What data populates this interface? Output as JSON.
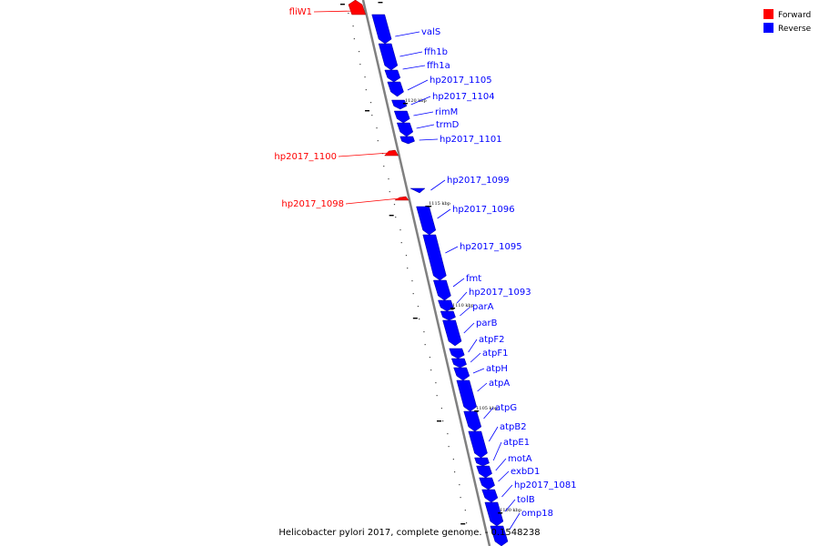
{
  "caption": "Helicobacter pylori 2017, complete genome. - 0.1548238",
  "legend": [
    {
      "label": "Forward",
      "color": "#ff0000"
    },
    {
      "label": "Reverse",
      "color": "#0000ff"
    }
  ],
  "colors": {
    "forward": "#ff0000",
    "reverse": "#0000ff",
    "backbone": "#808080"
  },
  "ticks": [
    "1120 kbp",
    "1115 kbp",
    "1110 kbp",
    "1105 kbp",
    "1100 kbp"
  ],
  "genes": [
    {
      "name": "fliW1",
      "strand": "forward"
    },
    {
      "name": "valS",
      "strand": "reverse"
    },
    {
      "name": "ffh1b",
      "strand": "reverse"
    },
    {
      "name": "ffh1a",
      "strand": "reverse"
    },
    {
      "name": "hp2017_1105",
      "strand": "reverse"
    },
    {
      "name": "hp2017_1104",
      "strand": "reverse"
    },
    {
      "name": "rimM",
      "strand": "reverse"
    },
    {
      "name": "trmD",
      "strand": "reverse"
    },
    {
      "name": "hp2017_1101",
      "strand": "reverse"
    },
    {
      "name": "hp2017_1100",
      "strand": "forward"
    },
    {
      "name": "hp2017_1099",
      "strand": "reverse"
    },
    {
      "name": "hp2017_1098",
      "strand": "forward"
    },
    {
      "name": "hp2017_1096",
      "strand": "reverse"
    },
    {
      "name": "hp2017_1095",
      "strand": "reverse"
    },
    {
      "name": "fmt",
      "strand": "reverse"
    },
    {
      "name": "hp2017_1093",
      "strand": "reverse"
    },
    {
      "name": "parA",
      "strand": "reverse"
    },
    {
      "name": "parB",
      "strand": "reverse"
    },
    {
      "name": "atpF2",
      "strand": "reverse"
    },
    {
      "name": "atpF1",
      "strand": "reverse"
    },
    {
      "name": "atpH",
      "strand": "reverse"
    },
    {
      "name": "atpA",
      "strand": "reverse"
    },
    {
      "name": "atpG",
      "strand": "reverse"
    },
    {
      "name": "atpB2",
      "strand": "reverse"
    },
    {
      "name": "atpE1",
      "strand": "reverse"
    },
    {
      "name": "motA",
      "strand": "reverse"
    },
    {
      "name": "exbD1",
      "strand": "reverse"
    },
    {
      "name": "hp2017_1081",
      "strand": "reverse"
    },
    {
      "name": "tolB",
      "strand": "reverse"
    },
    {
      "name": "omp18",
      "strand": "reverse"
    }
  ]
}
